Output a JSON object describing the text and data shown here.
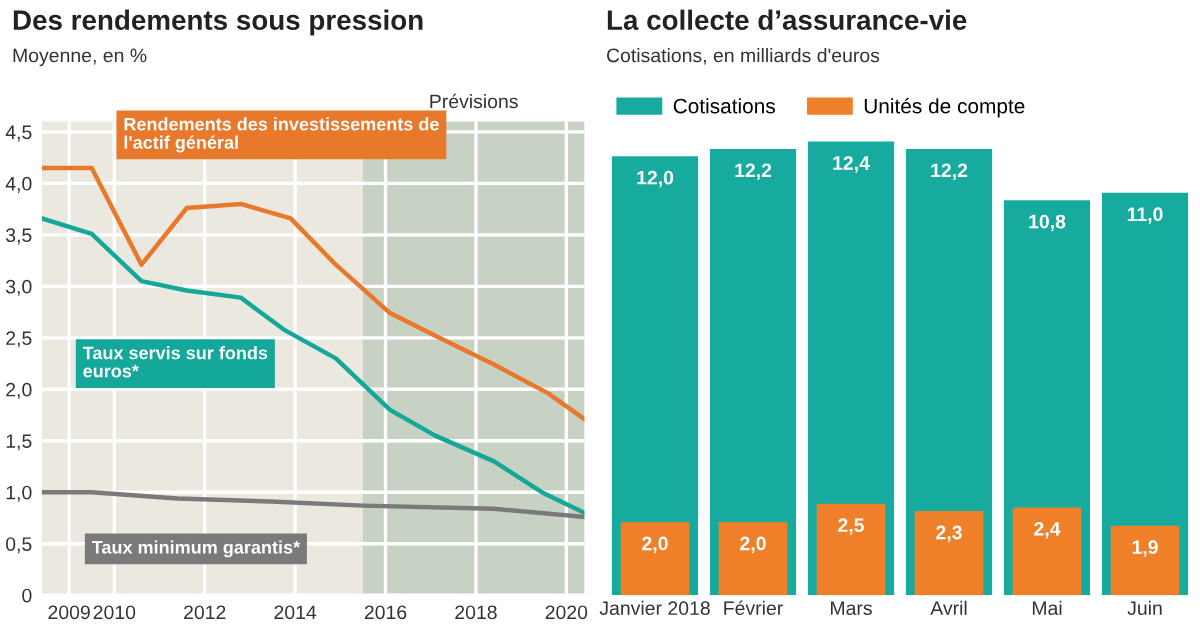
{
  "chart_data": [
    {
      "type": "line",
      "title": "Des rendements sous pression",
      "subtitle": "Moyenne, en %",
      "xlim": [
        2008.4,
        2020.4
      ],
      "xticks": [
        2009,
        2010,
        2012,
        2014,
        2016,
        2018,
        2020
      ],
      "ylim": [
        0,
        4.6
      ],
      "yticks": [
        {
          "value": 0,
          "label": "0"
        },
        {
          "value": 0.5,
          "label": "0,5"
        },
        {
          "value": 1,
          "label": "1,0"
        },
        {
          "value": 1.5,
          "label": "1,5"
        },
        {
          "value": 2,
          "label": "2,0"
        },
        {
          "value": 2.5,
          "label": "2,5"
        },
        {
          "value": 3,
          "label": "3,0"
        },
        {
          "value": 3.5,
          "label": "3,5"
        },
        {
          "value": 4,
          "label": "4,0"
        },
        {
          "value": 4.5,
          "label": "4,5"
        }
      ],
      "grid": true,
      "legend": false,
      "marker": "none",
      "line_style": "solid",
      "bands": [
        {
          "axis": "x",
          "from": 2015.5,
          "to": 2020.4,
          "label": "Prévisions",
          "color": "#c8d2c4"
        }
      ],
      "series": [
        {
          "name": "Rendements des investissements de l'actif général",
          "color": "#e8782a",
          "x": [
            2008.4,
            2009.5,
            2010.6,
            2011.6,
            2012.8,
            2013.9,
            2014.9,
            2016.1,
            2017.1,
            2018.4,
            2019.6,
            2020.4
          ],
          "values": [
            4.15,
            4.15,
            3.21,
            3.76,
            3.8,
            3.66,
            3.21,
            2.74,
            2.52,
            2.24,
            1.96,
            1.71
          ]
        },
        {
          "name": "Taux servis sur fonds euros*",
          "color": "#14a89a",
          "x": [
            2008.4,
            2009.5,
            2010.6,
            2011.6,
            2012.8,
            2013.75,
            2014.9,
            2016.1,
            2017.1,
            2018.4,
            2019.5,
            2020.4
          ],
          "values": [
            3.66,
            3.51,
            3.05,
            2.96,
            2.89,
            2.58,
            2.3,
            1.8,
            1.55,
            1.3,
            0.99,
            0.8
          ]
        },
        {
          "name": "Taux minimum garantis*",
          "color": "#7a7a7a",
          "x": [
            2008.4,
            2009.5,
            2011.4,
            2013.45,
            2015.5,
            2018.4,
            2020.4
          ],
          "values": [
            1.0,
            1.0,
            0.94,
            0.91,
            0.87,
            0.84,
            0.76
          ]
        }
      ]
    },
    {
      "type": "bar",
      "title": "La collecte d’assurance-vie",
      "subtitle": "Cotisations, en milliards d'euros",
      "categories": [
        "Janvier 2018",
        "Février",
        "Mars",
        "Avril",
        "Mai",
        "Juin"
      ],
      "legend": "top left",
      "series": [
        {
          "name": "Cotisations",
          "color": "#17ab9f",
          "values": [
            12.0,
            12.2,
            12.4,
            12.2,
            10.8,
            11.0
          ],
          "value_labels": [
            "12,0",
            "12,2",
            "12,4",
            "12,2",
            "10,8",
            "11,0"
          ]
        },
        {
          "name": "Unités de compte",
          "color": "#f07f2a",
          "values": [
            2.0,
            2.0,
            2.5,
            2.3,
            2.4,
            1.9
          ],
          "value_labels": [
            "2,0",
            "2,0",
            "2,5",
            "2,3",
            "2,4",
            "1,9"
          ]
        }
      ]
    }
  ]
}
